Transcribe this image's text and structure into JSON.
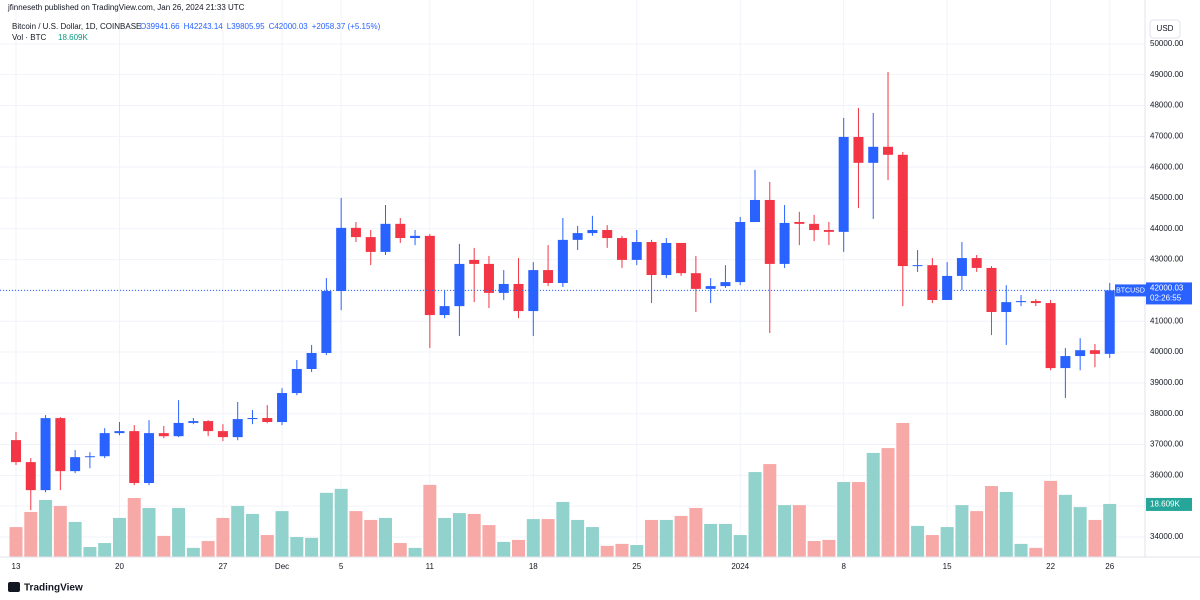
{
  "header": {
    "publisher": "jfinneseth published on TradingView.com, Jan 26, 2024 21:33 UTC",
    "footer": "TradingView"
  },
  "chart_data": {
    "type": "candlestick",
    "title": "Bitcoin / U.S. Dollar, 1D, COINBASE",
    "ohlc_legend": [
      "O39941.66",
      "H42243.14",
      "L39805.95",
      "C42000.03",
      "+2058.37 (+5.15%)"
    ],
    "currency": "USD",
    "categories": [
      "13",
      null,
      null,
      null,
      null,
      null,
      null,
      "20",
      null,
      null,
      null,
      null,
      null,
      null,
      "27",
      null,
      null,
      null,
      "Dec",
      null,
      null,
      null,
      "5",
      null,
      null,
      null,
      null,
      null,
      "11",
      null,
      null,
      null,
      null,
      null,
      null,
      "18",
      null,
      null,
      null,
      null,
      null,
      null,
      "25",
      null,
      null,
      null,
      null,
      null,
      null,
      "2024",
      null,
      null,
      null,
      null,
      null,
      null,
      "8",
      null,
      null,
      null,
      null,
      null,
      null,
      "15",
      null,
      null,
      null,
      null,
      null,
      null,
      "22",
      null,
      null,
      null,
      "26"
    ],
    "series": [
      {
        "name": "BTCUSD",
        "up_color": "#2962ff",
        "down_color": "#f23645",
        "open": [
          37143,
          36429,
          35520,
          37857,
          36136,
          36590,
          36620,
          37370,
          37435,
          35750,
          37370,
          37270,
          37700,
          37760,
          37435,
          37240,
          37825,
          37860,
          37730,
          38670,
          39450,
          39970,
          41980,
          44030,
          43730,
          43250,
          44160,
          43700,
          43770,
          41200,
          41490,
          42990,
          42860,
          41920,
          42210,
          41330,
          42660,
          42240,
          43640,
          43860,
          43960,
          43700,
          42990,
          43570,
          42500,
          43540,
          42560,
          42050,
          42140,
          42270,
          44220,
          44935,
          42860,
          44220,
          44160,
          43960,
          43900,
          46980,
          46140,
          46660,
          46400,
          42790,
          42820,
          41690,
          42470,
          43050,
          42730,
          41300,
          41620,
          41655,
          41590,
          39480,
          39870,
          40060,
          39941.66
        ],
        "high": [
          37400,
          36560,
          37955,
          37890,
          36820,
          36750,
          37530,
          37730,
          37630,
          37790,
          37600,
          38440,
          37860,
          37790,
          37660,
          38380,
          38120,
          38280,
          38830,
          39740,
          40230,
          42400,
          45000,
          44220,
          43960,
          44770,
          44350,
          43960,
          43830,
          42010,
          43510,
          43380,
          43120,
          42660,
          43050,
          42920,
          43470,
          44350,
          44090,
          44420,
          44120,
          43770,
          43960,
          43640,
          43700,
          43510,
          43120,
          42400,
          42820,
          44380,
          45910,
          45520,
          44770,
          44550,
          44450,
          44220,
          47600,
          47920,
          47760,
          49090,
          46490,
          43310,
          43050,
          42920,
          43570,
          43150,
          42790,
          42170,
          41850,
          41720,
          41690,
          40130,
          40450,
          40260,
          42243.14
        ],
        "low": [
          36330,
          34870,
          35450,
          35520,
          36070,
          36230,
          36560,
          37300,
          35680,
          35680,
          37210,
          37240,
          37660,
          37270,
          37110,
          37140,
          37660,
          37690,
          37630,
          38600,
          39350,
          39900,
          41360,
          43570,
          42820,
          43150,
          43540,
          43470,
          40130,
          41100,
          40520,
          41620,
          41430,
          41690,
          41100,
          40520,
          42140,
          42110,
          43310,
          43770,
          43380,
          42730,
          42820,
          41590,
          42400,
          42470,
          41300,
          41590,
          42080,
          42170,
          44220,
          40620,
          42730,
          43470,
          43600,
          43470,
          43250,
          44670,
          44320,
          45580,
          41490,
          42600,
          41590,
          41690,
          42010,
          42600,
          40550,
          40230,
          41490,
          41490,
          39410,
          38510,
          39410,
          39510,
          39805.95
        ],
        "close": [
          36429,
          35520,
          37857,
          36136,
          36590,
          36620,
          37370,
          37435,
          35750,
          37370,
          37270,
          37700,
          37760,
          37435,
          37240,
          37825,
          37860,
          37730,
          38670,
          39450,
          39970,
          41980,
          44030,
          43730,
          43250,
          44160,
          43700,
          43770,
          41200,
          41490,
          42860,
          42860,
          41920,
          42210,
          41330,
          42660,
          42240,
          43640,
          43860,
          43960,
          43700,
          42990,
          43570,
          42500,
          43540,
          42560,
          42050,
          42140,
          42270,
          44220,
          44935,
          42860,
          44190,
          44160,
          43960,
          43900,
          46980,
          46140,
          46660,
          46400,
          42790,
          42820,
          41690,
          42470,
          43050,
          42730,
          41300,
          41620,
          41655,
          41590,
          39480,
          39870,
          40060,
          39940,
          42000.03
        ]
      }
    ],
    "volume": {
      "name": "Vol · BTC",
      "last_label": "18.609K",
      "up_color": "#92d2cc",
      "down_color": "#f7a9a7",
      "values": [
        10.5,
        15.8,
        20,
        17.9,
        12.3,
        3.5,
        4.9,
        13.7,
        20.7,
        17.2,
        7.4,
        17.2,
        3.2,
        5.6,
        13.7,
        17.9,
        15.1,
        7.7,
        16.1,
        7,
        6.7,
        22.5,
        23.9,
        16.1,
        13,
        13.7,
        4.9,
        3.2,
        25.3,
        13.7,
        15.4,
        15.1,
        11.2,
        5.3,
        6,
        13.3,
        13.3,
        19.3,
        13,
        10.5,
        3.9,
        4.6,
        4.2,
        13,
        13,
        14.4,
        17.2,
        11.6,
        11.6,
        7.7,
        29.8,
        32.6,
        18.2,
        18.2,
        5.6,
        6,
        26.3,
        26.3,
        36.5,
        38.2,
        47,
        10.9,
        7.7,
        10.5,
        18.2,
        16.1,
        24.9,
        22.8,
        4.6,
        3.2,
        26.7,
        21.8,
        17.5,
        13,
        18.609
      ]
    },
    "price_tag": {
      "symbol": "BTCUSD",
      "price": "42000.03",
      "countdown": "02:26:55"
    },
    "ylim": [
      33350,
      50450
    ],
    "yticks": [
      {
        "value": 34000,
        "label": "34000.00"
      },
      {
        "value": 35000,
        "label": "35000.00"
      },
      {
        "value": 36000,
        "label": "36000.00"
      },
      {
        "value": 37000,
        "label": "37000.00"
      },
      {
        "value": 38000,
        "label": "38000.00"
      },
      {
        "value": 39000,
        "label": "39000.00"
      },
      {
        "value": 40000,
        "label": "40000.00"
      },
      {
        "value": 41000,
        "label": "41000.00"
      },
      {
        "value": 42000,
        "label": "42000.00"
      },
      {
        "value": 43000,
        "label": "43000.00"
      },
      {
        "value": 44000,
        "label": "44000.00"
      },
      {
        "value": 45000,
        "label": "45000.00"
      },
      {
        "value": 46000,
        "label": "46000.00"
      },
      {
        "value": 47000,
        "label": "47000.00"
      },
      {
        "value": 48000,
        "label": "48000.00"
      },
      {
        "value": 49000,
        "label": "49000.00"
      },
      {
        "value": 50000,
        "label": "50000.00"
      }
    ],
    "grid": true
  }
}
